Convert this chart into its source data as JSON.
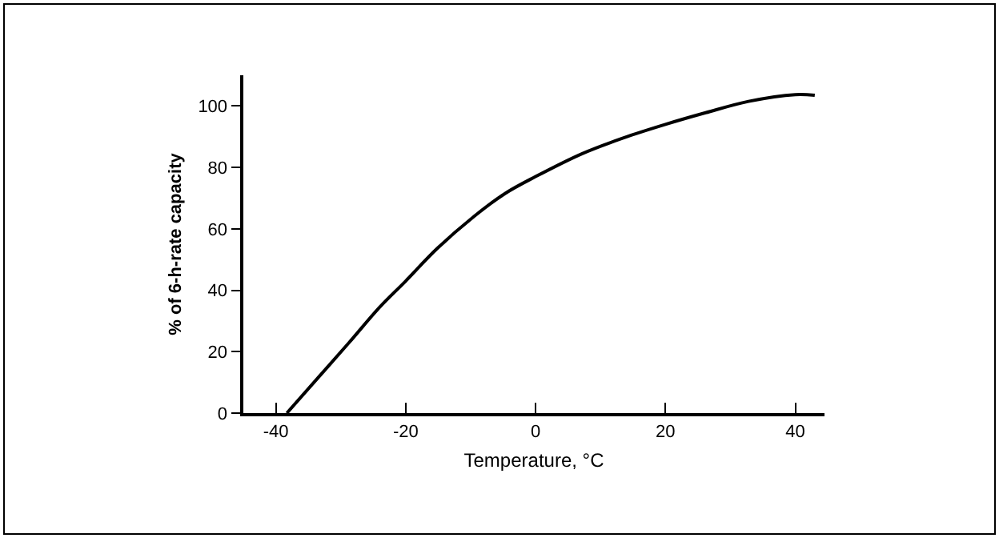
{
  "chart_data": {
    "type": "line",
    "xlabel": "Temperature, °C",
    "ylabel": "% of 6-h-rate capacity",
    "x": [
      -38.3,
      -33.5,
      -28.7,
      -24,
      -20,
      -15.2,
      -9.5,
      -4.7,
      0,
      7.2,
      13.4,
      20,
      26.2,
      32.8,
      40,
      43
    ],
    "series": [
      {
        "color": "#000000",
        "values": [
          0,
          11.5,
          23,
          34.5,
          43,
          53.5,
          64,
          71.5,
          77,
          84.5,
          89.5,
          94,
          97.8,
          101.5,
          103.7,
          103.5
        ]
      }
    ],
    "xlim": [
      -45,
      44.5
    ],
    "xticks": [
      -40,
      -20,
      0,
      20,
      40
    ],
    "ylim": [
      0,
      110
    ],
    "yticks": [
      0,
      20,
      40,
      60,
      80,
      100
    ],
    "marker": "none",
    "line_style": "solid"
  }
}
